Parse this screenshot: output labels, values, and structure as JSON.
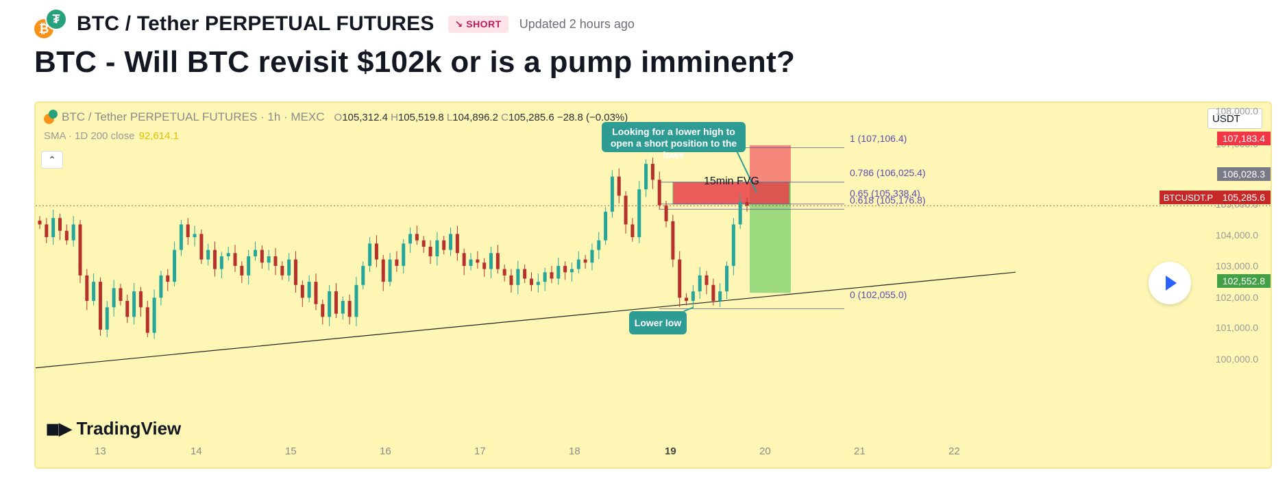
{
  "header": {
    "symbol": "BTC / Tether PERPETUAL FUTURES",
    "badge": "↘ SHORT",
    "updated": "Updated 2 hours ago",
    "coin_icons": [
      "btc-coin-icon",
      "usdt-coin-icon"
    ]
  },
  "idea_title": "BTC - Will BTC revisit $102k or is a pump imminent?",
  "chart": {
    "legend": {
      "symbol": "BTC / Tether PERPETUAL FUTURES · 1h · MEXC",
      "o_label": "O",
      "o": "105,312.4",
      "h_label": "H",
      "h": "105,519.8",
      "l_label": "L",
      "l": "104,896.2",
      "c_label": "C",
      "c": "105,285.6",
      "change": "−28.8 (−0.03%)"
    },
    "sma": {
      "label": "SMA · 1D 200 close",
      "value": "92,614.1"
    },
    "currency": "USDT",
    "collapse_glyph": "⌃",
    "logo": "TradingView",
    "y_ticks": [
      "108,000.0",
      "107,000.0",
      "105,000.0",
      "104,000.0",
      "103,000.0",
      "102,000.0",
      "101,000.0",
      "100,000.0"
    ],
    "x_ticks": [
      "13",
      "14",
      "15",
      "16",
      "17",
      "18",
      "19",
      "20",
      "21",
      "22"
    ],
    "price_tags": {
      "red": "107,183.4",
      "gray": "106,028.3",
      "current_symbol": "BTCUSDT.P",
      "current": "105,285.6",
      "green": "102,552.8"
    },
    "fib": {
      "l1": "1 (107,106.4)",
      "l786": "0.786 (106,025.4)",
      "l65": "0.65 (105,338.4)",
      "l618": "0.618 (105,176.8)",
      "l0": "0 (102,055.0)"
    },
    "fvg_label": "15min FVG",
    "callouts": {
      "top": "Looking for a lower high to open a short position to the lows",
      "bottom": "Lower low"
    },
    "colors": {
      "bull": "#26a69a",
      "bear": "#b7312c",
      "bg": "#fdf6b5",
      "fib": "#5c4bb3"
    },
    "chart_data": {
      "type": "candlestick",
      "x_ticks": [
        "13",
        "14",
        "15",
        "16",
        "17",
        "18",
        "19",
        "20",
        "21",
        "22"
      ],
      "ylim": [
        99700,
        108300
      ],
      "price": [
        104700,
        104300,
        104900,
        104500,
        104200,
        104700,
        103100,
        102300,
        102900,
        101400,
        102100,
        102700,
        102300,
        101800,
        102600,
        102100,
        101300,
        102400,
        103100,
        102900,
        103900,
        104700,
        104300,
        104400,
        103600,
        103900,
        103300,
        103700,
        103800,
        103400,
        103100,
        103700,
        103900,
        103500,
        103700,
        103400,
        103100,
        103600,
        102800,
        102400,
        102900,
        102200,
        101800,
        102600,
        101900,
        102300,
        101800,
        102800,
        103400,
        104100,
        103600,
        102900,
        103600,
        103400,
        104100,
        104400,
        104200,
        104000,
        103700,
        104200,
        103900,
        104400,
        103800,
        103400,
        103600,
        103500,
        103300,
        103800,
        103300,
        103100,
        102800,
        103300,
        103000,
        102800,
        102900,
        103200,
        103000,
        103400,
        103200,
        103300,
        103600,
        103500,
        103900,
        104200,
        105100,
        106200,
        105600,
        104700,
        104300,
        105800,
        106600,
        106100,
        105300,
        104800,
        103600,
        102400,
        102300,
        102600,
        103100,
        102800,
        102300,
        102600,
        103400,
        104700,
        105400,
        105286
      ]
    }
  }
}
